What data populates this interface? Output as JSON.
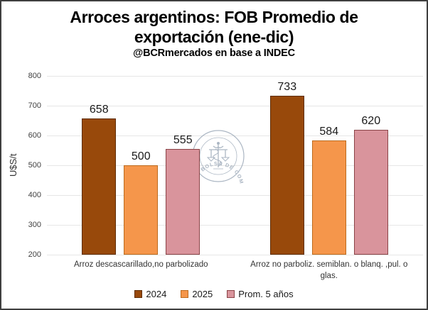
{
  "chart_data": {
    "type": "bar",
    "title": "Arroces argentinos: FOB Promedio de exportación (ene-dic)",
    "subtitle": "@BCRmercados en base a INDEC",
    "ylabel": "U$S/t",
    "ylim": [
      200,
      800
    ],
    "ytick_step": 100,
    "grid": "horizontal",
    "legend_position": "bottom",
    "categories": [
      "Arroz descascarillado,no parbolizado",
      "Arroz no parboliz. semiblan. o blanq. ,pul. o glas."
    ],
    "series": [
      {
        "name": "2024",
        "values": [
          658,
          733
        ],
        "fill": "#98490B",
        "border": "#5E2D06"
      },
      {
        "name": "2025",
        "values": [
          500,
          584
        ],
        "fill": "#F5964B",
        "border": "#BC6B1E"
      },
      {
        "name": "Prom. 5 años",
        "values": [
          555,
          620
        ],
        "fill": "#D9949C",
        "border": "#8A4447"
      }
    ]
  },
  "watermark": {
    "text": "BOLSA DE COMERCIO DE ROSARIO",
    "color": "#A3AFBD"
  }
}
